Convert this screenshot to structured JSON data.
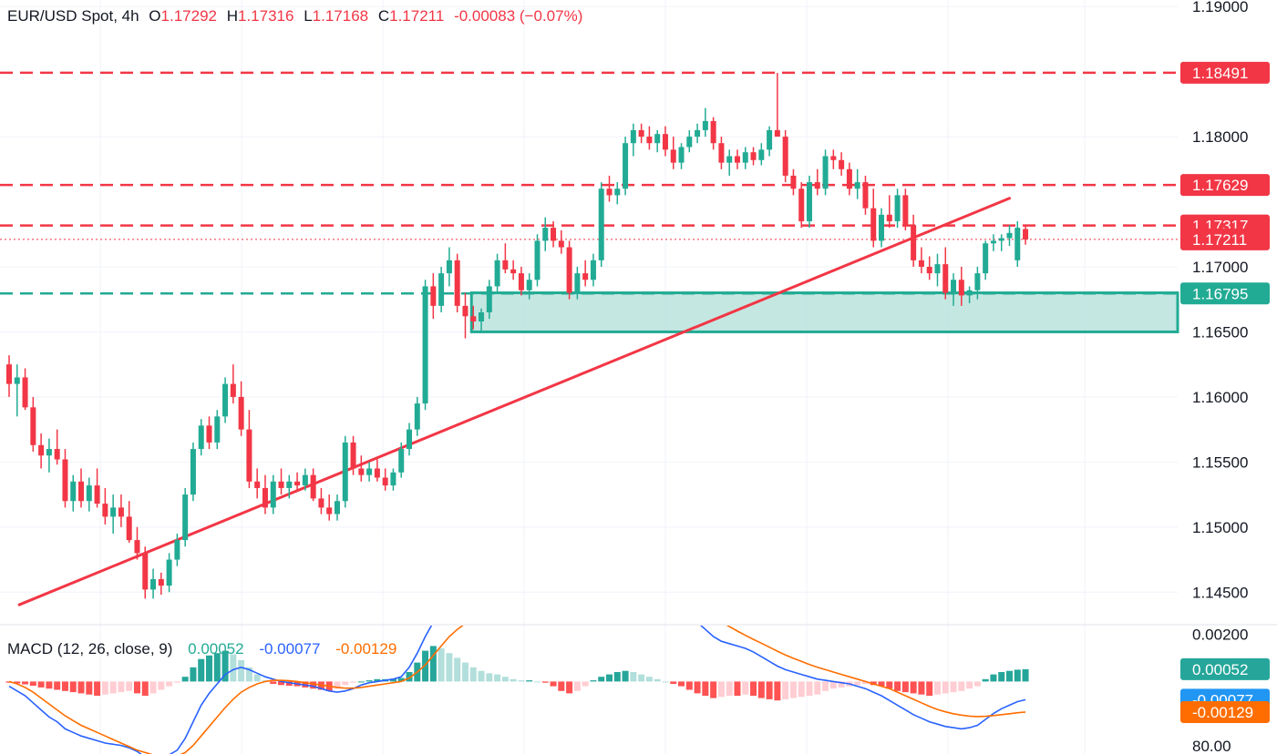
{
  "legend": {
    "symbol": "EUR/USD Spot, 4h",
    "o_label": "O",
    "o": "1.17292",
    "h_label": "H",
    "h": "1.17316",
    "l_label": "L",
    "l": "1.17168",
    "c_label": "C",
    "c": "1.17211",
    "change": "-0.00083 (−0.07%)"
  },
  "macd_legend": {
    "title": "MACD (12, 26, close, 9)",
    "hist": "0.00052",
    "macd": "-0.00077",
    "signal": "-0.00129"
  },
  "colors": {
    "up": "#22ab94",
    "down": "#f23645",
    "hist_up_strong": "#26a69a",
    "hist_up_weak": "#b2dfdb",
    "hist_down_strong": "#ff5252",
    "hist_down_weak": "#ffcdd2",
    "macd_line": "#2962ff",
    "signal_line": "#ff6d00",
    "zone_fill": "#b2dfd8"
  },
  "chart_data": {
    "type": "candlestick",
    "symbol": "EUR/USD",
    "interval": "4h",
    "y_axis_ticks": [
      "1.19000",
      "1.18000",
      "1.17000",
      "1.16500",
      "1.16000",
      "1.15500",
      "1.15000",
      "1.14500"
    ],
    "ylim": [
      1.1425,
      1.1905
    ],
    "price_tags": [
      {
        "value": 1.18491,
        "label": "1.18491",
        "color": "#f23645",
        "style": "dashed"
      },
      {
        "value": 1.17629,
        "label": "1.17629",
        "color": "#f23645",
        "style": "dashed"
      },
      {
        "value": 1.17317,
        "label": "1.17317",
        "color": "#f23645",
        "style": "dashed"
      },
      {
        "value": 1.17211,
        "label": "1.17211",
        "color": "#f23645",
        "style": "dotted"
      },
      {
        "value": 1.16795,
        "label": "1.16795",
        "color": "#22ab94",
        "style": "dashed"
      }
    ],
    "support_zone": {
      "from": 1.165,
      "to": 1.168
    },
    "trendline": {
      "start": {
        "bar": 0,
        "price": 1.144
      },
      "end": {
        "bar": 124,
        "price": 1.1753
      }
    },
    "candles": [
      [
        1.1625,
        1.1632,
        1.16,
        1.161
      ],
      [
        1.161,
        1.1625,
        1.1585,
        1.1615
      ],
      [
        1.1615,
        1.1622,
        1.159,
        1.1592
      ],
      [
        1.1592,
        1.16,
        1.1558,
        1.1563
      ],
      [
        1.1563,
        1.1572,
        1.1545,
        1.1555
      ],
      [
        1.1555,
        1.1568,
        1.1542,
        1.156
      ],
      [
        1.156,
        1.1575,
        1.1548,
        1.1552
      ],
      [
        1.1552,
        1.156,
        1.1515,
        1.152
      ],
      [
        1.152,
        1.154,
        1.1512,
        1.1535
      ],
      [
        1.1535,
        1.1545,
        1.1515,
        1.152
      ],
      [
        1.152,
        1.1538,
        1.1512,
        1.1532
      ],
      [
        1.1532,
        1.1545,
        1.1515,
        1.1518
      ],
      [
        1.1518,
        1.153,
        1.1502,
        1.1508
      ],
      [
        1.1508,
        1.1525,
        1.1495,
        1.1515
      ],
      [
        1.1515,
        1.1525,
        1.15,
        1.1508
      ],
      [
        1.1508,
        1.152,
        1.1488,
        1.149
      ],
      [
        1.149,
        1.15,
        1.1475,
        1.148
      ],
      [
        1.148,
        1.1485,
        1.1445,
        1.1452
      ],
      [
        1.1452,
        1.1468,
        1.1445,
        1.146
      ],
      [
        1.146,
        1.1465,
        1.1448,
        1.1455
      ],
      [
        1.1455,
        1.148,
        1.145,
        1.1475
      ],
      [
        1.1475,
        1.1495,
        1.147,
        1.149
      ],
      [
        1.149,
        1.153,
        1.1485,
        1.1525
      ],
      [
        1.1525,
        1.1565,
        1.152,
        1.156
      ],
      [
        1.156,
        1.1583,
        1.1555,
        1.1578
      ],
      [
        1.1578,
        1.1585,
        1.156,
        1.1565
      ],
      [
        1.1565,
        1.159,
        1.156,
        1.1585
      ],
      [
        1.1585,
        1.1615,
        1.158,
        1.161
      ],
      [
        1.161,
        1.1625,
        1.1595,
        1.16
      ],
      [
        1.16,
        1.1612,
        1.157,
        1.1575
      ],
      [
        1.1575,
        1.159,
        1.153,
        1.1535
      ],
      [
        1.1535,
        1.1545,
        1.1522,
        1.153
      ],
      [
        1.153,
        1.154,
        1.151,
        1.1515
      ],
      [
        1.1515,
        1.154,
        1.151,
        1.1535
      ],
      [
        1.1535,
        1.1545,
        1.1525,
        1.153
      ],
      [
        1.153,
        1.154,
        1.1522,
        1.1535
      ],
      [
        1.1535,
        1.1542,
        1.1528,
        1.1532
      ],
      [
        1.1532,
        1.1545,
        1.1528,
        1.154
      ],
      [
        1.154,
        1.1545,
        1.152,
        1.1522
      ],
      [
        1.1522,
        1.153,
        1.151,
        1.1515
      ],
      [
        1.1515,
        1.1525,
        1.1505,
        1.151
      ],
      [
        1.151,
        1.1525,
        1.1505,
        1.152
      ],
      [
        1.152,
        1.157,
        1.1515,
        1.1565
      ],
      [
        1.1565,
        1.157,
        1.154,
        1.1545
      ],
      [
        1.1545,
        1.1555,
        1.1535,
        1.154
      ],
      [
        1.154,
        1.155,
        1.1535,
        1.1545
      ],
      [
        1.1545,
        1.1552,
        1.1535,
        1.1538
      ],
      [
        1.1538,
        1.1545,
        1.1528,
        1.1532
      ],
      [
        1.1532,
        1.1545,
        1.1528,
        1.1542
      ],
      [
        1.1542,
        1.1565,
        1.1538,
        1.156
      ],
      [
        1.156,
        1.158,
        1.1555,
        1.1575
      ],
      [
        1.1575,
        1.16,
        1.157,
        1.1595
      ],
      [
        1.1595,
        1.169,
        1.159,
        1.1685
      ],
      [
        1.1685,
        1.1695,
        1.166,
        1.167
      ],
      [
        1.167,
        1.17,
        1.1665,
        1.1695
      ],
      [
        1.1695,
        1.1715,
        1.1685,
        1.1705
      ],
      [
        1.1705,
        1.171,
        1.1665,
        1.167
      ],
      [
        1.167,
        1.168,
        1.1645,
        1.1662
      ],
      [
        1.1662,
        1.167,
        1.1652,
        1.1658
      ],
      [
        1.1658,
        1.1668,
        1.165,
        1.1665
      ],
      [
        1.1665,
        1.169,
        1.166,
        1.1685
      ],
      [
        1.1685,
        1.171,
        1.168,
        1.1705
      ],
      [
        1.1705,
        1.1718,
        1.1695,
        1.1698
      ],
      [
        1.1698,
        1.1705,
        1.169,
        1.1695
      ],
      [
        1.1695,
        1.17,
        1.1678,
        1.1682
      ],
      [
        1.1682,
        1.1695,
        1.1675,
        1.169
      ],
      [
        1.169,
        1.1725,
        1.1685,
        1.172
      ],
      [
        1.172,
        1.1738,
        1.1712,
        1.173
      ],
      [
        1.173,
        1.1735,
        1.1715,
        1.172
      ],
      [
        1.172,
        1.1728,
        1.171,
        1.1715
      ],
      [
        1.1715,
        1.172,
        1.1675,
        1.168
      ],
      [
        1.168,
        1.17,
        1.1675,
        1.1695
      ],
      [
        1.1695,
        1.1705,
        1.1685,
        1.169
      ],
      [
        1.169,
        1.171,
        1.1685,
        1.1705
      ],
      [
        1.1705,
        1.1765,
        1.17,
        1.176
      ],
      [
        1.176,
        1.177,
        1.175,
        1.1755
      ],
      [
        1.1755,
        1.1765,
        1.1748,
        1.176
      ],
      [
        1.176,
        1.18,
        1.1755,
        1.1795
      ],
      [
        1.1795,
        1.181,
        1.1785,
        1.1805
      ],
      [
        1.1805,
        1.181,
        1.1795,
        1.18
      ],
      [
        1.18,
        1.1808,
        1.179,
        1.1795
      ],
      [
        1.1795,
        1.1805,
        1.1788,
        1.1802
      ],
      [
        1.1802,
        1.1808,
        1.1785,
        1.179
      ],
      [
        1.179,
        1.18,
        1.1775,
        1.178
      ],
      [
        1.178,
        1.1795,
        1.1775,
        1.1792
      ],
      [
        1.1792,
        1.1805,
        1.1788,
        1.18
      ],
      [
        1.18,
        1.181,
        1.1795,
        1.1805
      ],
      [
        1.1805,
        1.1822,
        1.18,
        1.1812
      ],
      [
        1.1812,
        1.1815,
        1.179,
        1.1795
      ],
      [
        1.1795,
        1.18,
        1.1775,
        1.178
      ],
      [
        1.178,
        1.179,
        1.177,
        1.1785
      ],
      [
        1.1785,
        1.179,
        1.1775,
        1.178
      ],
      [
        1.178,
        1.1792,
        1.1775,
        1.1788
      ],
      [
        1.1788,
        1.1792,
        1.1778,
        1.1782
      ],
      [
        1.1782,
        1.1795,
        1.1778,
        1.179
      ],
      [
        1.179,
        1.1808,
        1.1785,
        1.1805
      ],
      [
        1.1805,
        1.1849,
        1.18,
        1.18
      ],
      [
        1.18,
        1.1805,
        1.1765,
        1.177
      ],
      [
        1.177,
        1.1775,
        1.1755,
        1.176
      ],
      [
        1.176,
        1.1765,
        1.173,
        1.1735
      ],
      [
        1.1735,
        1.177,
        1.173,
        1.1765
      ],
      [
        1.1765,
        1.1775,
        1.1755,
        1.176
      ],
      [
        1.176,
        1.179,
        1.1755,
        1.1785
      ],
      [
        1.1785,
        1.179,
        1.1775,
        1.1782
      ],
      [
        1.1782,
        1.1788,
        1.177,
        1.1775
      ],
      [
        1.1775,
        1.178,
        1.1755,
        1.176
      ],
      [
        1.176,
        1.1775,
        1.1752,
        1.1765
      ],
      [
        1.1765,
        1.177,
        1.174,
        1.1745
      ],
      [
        1.1745,
        1.176,
        1.1715,
        1.172
      ],
      [
        1.172,
        1.1745,
        1.1715,
        1.174
      ],
      [
        1.174,
        1.1755,
        1.173,
        1.1735
      ],
      [
        1.1735,
        1.176,
        1.173,
        1.1755
      ],
      [
        1.1755,
        1.176,
        1.1728,
        1.1732
      ],
      [
        1.1732,
        1.174,
        1.17,
        1.1705
      ],
      [
        1.1705,
        1.1715,
        1.1695,
        1.17
      ],
      [
        1.17,
        1.1708,
        1.169,
        1.1695
      ],
      [
        1.1695,
        1.171,
        1.1685,
        1.1702
      ],
      [
        1.1702,
        1.1715,
        1.1675,
        1.168
      ],
      [
        1.168,
        1.1695,
        1.167,
        1.169
      ],
      [
        1.169,
        1.17,
        1.167,
        1.1678
      ],
      [
        1.1678,
        1.1685,
        1.1672,
        1.1682
      ],
      [
        1.1682,
        1.17,
        1.1675,
        1.1695
      ],
      [
        1.1695,
        1.172,
        1.169,
        1.1718
      ],
      [
        1.1718,
        1.1725,
        1.1712,
        1.172
      ],
      [
        1.172,
        1.1725,
        1.1712,
        1.1722
      ],
      [
        1.1722,
        1.1732,
        1.1716,
        1.1726
      ],
      [
        1.1705,
        1.1735,
        1.17,
        1.173
      ],
      [
        1.1729,
        1.1732,
        1.1717,
        1.1721
      ]
    ],
    "macd": {
      "y_axis_ticks": [
        "0.00200"
      ],
      "ylim": [
        -0.0026,
        0.0024
      ],
      "histogram": [
        -5e-05,
        -8e-05,
        -0.00012,
        -0.00018,
        -0.00025,
        -0.0003,
        -0.00035,
        -0.0004,
        -0.00045,
        -0.0005,
        -0.00055,
        -0.0006,
        -0.00055,
        -0.0005,
        -0.00045,
        -0.0004,
        -0.0005,
        -0.0006,
        -0.0005,
        -0.00035,
        -0.0002,
        -5e-05,
        0.0002,
        0.0006,
        0.00095,
        0.0011,
        0.0012,
        0.0013,
        0.00115,
        0.0009,
        0.0006,
        0.0003,
        5e-05,
        -0.0001,
        -0.00015,
        -0.00018,
        -0.0002,
        -0.00025,
        -0.0003,
        -0.00035,
        -0.0004,
        -0.0003,
        -0.00015,
        -5e-05,
        0.0,
        5e-05,
        0.0001,
        0.0001,
        0.00012,
        0.00015,
        0.0004,
        0.0008,
        0.0013,
        0.0015,
        0.0014,
        0.0012,
        0.001,
        0.0008,
        0.0006,
        0.00045,
        0.00035,
        0.0003,
        0.0002,
        0.0001,
        5e-05,
        5e-05,
        0.0,
        -5e-05,
        -0.0002,
        -0.0004,
        -0.0005,
        -0.0004,
        -0.0002,
        5e-05,
        0.0002,
        0.0003,
        0.0004,
        0.00045,
        0.0004,
        0.0003,
        0.0002,
        0.0001,
        0.0,
        -0.0001,
        -0.0002,
        -0.00035,
        -0.0005,
        -0.0006,
        -0.0007,
        -0.00065,
        -0.0006,
        -0.0006,
        -0.00055,
        -0.0006,
        -0.0007,
        -0.00075,
        -0.0008,
        -0.00075,
        -0.0007,
        -0.00065,
        -0.0006,
        -0.00055,
        -0.0004,
        -0.0003,
        -0.00025,
        -0.0002,
        -0.00015,
        -0.0001,
        -0.00015,
        -0.0002,
        -0.0003,
        -0.0004,
        -0.00045,
        -0.0005,
        -0.00055,
        -0.0006,
        -0.00055,
        -0.0005,
        -0.00045,
        -0.0004,
        -0.0003,
        -0.0002,
        0.0001,
        0.0003,
        0.0004,
        0.00045,
        0.0005,
        0.00052
      ],
      "macd_line": [
        -0.0002,
        -0.0004,
        -0.0006,
        -0.0009,
        -0.0012,
        -0.0015,
        -0.0017,
        -0.002,
        -0.00215,
        -0.0023,
        -0.0024,
        -0.0025,
        -0.0026,
        -0.00265,
        -0.0027,
        -0.0028,
        -0.00295,
        -0.0032,
        -0.0033,
        -0.00325,
        -0.0031,
        -0.0029,
        -0.0024,
        -0.0017,
        -0.001,
        -0.0005,
        -0.0001,
        0.0003,
        0.0005,
        0.0006,
        0.0005,
        0.00035,
        0.0002,
        0.0001,
        0.0,
        -5e-05,
        -0.0001,
        -0.00015,
        -0.0002,
        -0.0003,
        -0.0004,
        -0.00045,
        -0.0004,
        -0.0003,
        -0.00015,
        -5e-05,
        0.0,
        5e-05,
        0.0001,
        0.0002,
        0.0006,
        0.0012,
        0.0019,
        0.0025,
        0.0029,
        0.0031,
        0.0032,
        0.00325,
        0.0033,
        0.00335,
        0.0034,
        0.00345,
        0.0035,
        0.00345,
        0.0034,
        0.0033,
        0.0032,
        0.0031,
        0.003,
        0.00285,
        0.00275,
        0.0027,
        0.00275,
        0.0029,
        0.0031,
        0.0033,
        0.00345,
        0.00355,
        0.0036,
        0.00355,
        0.0035,
        0.0034,
        0.0033,
        0.0032,
        0.003,
        0.0028,
        0.0025,
        0.0022,
        0.0019,
        0.0017,
        0.0016,
        0.0015,
        0.0014,
        0.00125,
        0.00105,
        0.00085,
        0.00065,
        0.0005,
        0.0004,
        0.0003,
        0.0002,
        0.0001,
        5e-05,
        0.0,
        -5e-05,
        -0.0001,
        -0.0002,
        -0.0003,
        -0.00045,
        -0.0006,
        -0.0008,
        -0.001,
        -0.0012,
        -0.0014,
        -0.00155,
        -0.0017,
        -0.0018,
        -0.0019,
        -0.00195,
        -0.002,
        -0.00195,
        -0.00185,
        -0.0016,
        -0.00135,
        -0.00115,
        -0.001,
        -0.00085,
        -0.00077
      ],
      "signal_line": [
        0.0,
        -0.0001,
        -0.00025,
        -0.00045,
        -0.0007,
        -0.00095,
        -0.0012,
        -0.00145,
        -0.00165,
        -0.00185,
        -0.002,
        -0.00215,
        -0.0023,
        -0.00245,
        -0.0026,
        -0.00275,
        -0.0029,
        -0.003,
        -0.0031,
        -0.00315,
        -0.00318,
        -0.00315,
        -0.003,
        -0.0027,
        -0.0023,
        -0.0019,
        -0.0015,
        -0.0011,
        -0.00075,
        -0.00045,
        -0.00025,
        -0.0001,
        0.0,
        5e-05,
        5e-05,
        3e-05,
        0.0,
        -5e-05,
        -0.0001,
        -0.00015,
        -0.0002,
        -0.00025,
        -0.00028,
        -0.00028,
        -0.00025,
        -0.0002,
        -0.00015,
        -0.0001,
        -5e-05,
        0.0,
        0.00015,
        0.0004,
        0.0007,
        0.0011,
        0.0015,
        0.0019,
        0.0022,
        0.00245,
        0.00265,
        0.0028,
        0.00295,
        0.00305,
        0.00315,
        0.00322,
        0.00327,
        0.00328,
        0.00327,
        0.00323,
        0.00318,
        0.00312,
        0.00305,
        0.00298,
        0.00292,
        0.0029,
        0.00292,
        0.00298,
        0.00305,
        0.00312,
        0.0032,
        0.00325,
        0.0033,
        0.00332,
        0.00332,
        0.0033,
        0.00325,
        0.00318,
        0.00305,
        0.0029,
        0.00272,
        0.00252,
        0.00232,
        0.00213,
        0.00195,
        0.00178,
        0.00162,
        0.00145,
        0.00128,
        0.00112,
        0.00098,
        0.00085,
        0.00072,
        0.0006,
        0.0005,
        0.0004,
        0.0003,
        0.0002,
        0.0001,
        0.0,
        -0.0001,
        -0.0002,
        -0.0003,
        -0.00045,
        -0.0006,
        -0.00075,
        -0.0009,
        -0.00105,
        -0.00118,
        -0.00128,
        -0.00136,
        -0.00142,
        -0.00146,
        -0.00148,
        -0.00147,
        -0.00144,
        -0.0014,
        -0.00136,
        -0.00132,
        -0.00129
      ],
      "tags": [
        {
          "value": 0.00052,
          "label": "0.00052",
          "color": "#26a69a"
        },
        {
          "value": -0.00077,
          "label": "-0.00077",
          "color": "#2196f3"
        },
        {
          "value": -0.00129,
          "label": "-0.00129",
          "color": "#ff6d00"
        }
      ]
    },
    "rsi_axis_tick": "80.00"
  }
}
